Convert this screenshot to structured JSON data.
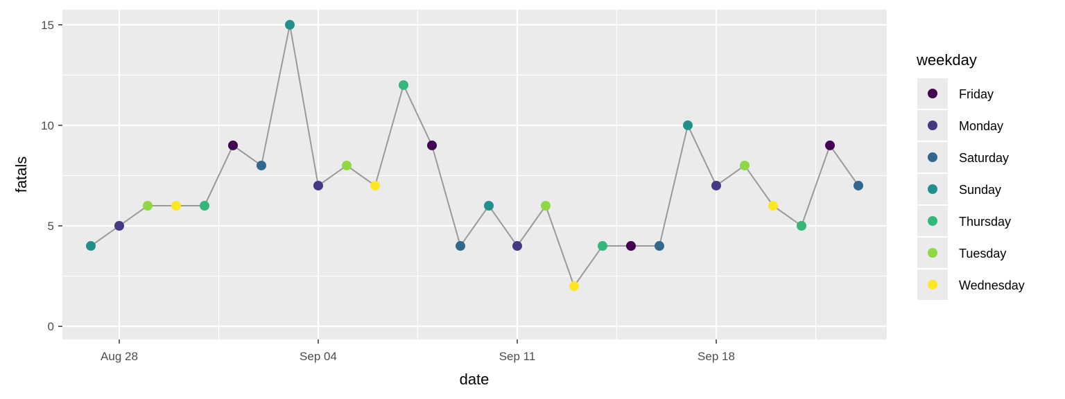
{
  "chart_data": {
    "type": "scatter",
    "title": "",
    "xlabel": "date",
    "ylabel": "fatals",
    "ylim": [
      0,
      15
    ],
    "xlim": [
      "2016-08-26",
      "2016-09-24"
    ],
    "x_ticks": [
      {
        "date": "2016-08-28",
        "label": "Aug 28"
      },
      {
        "date": "2016-09-04",
        "label": "Sep 04"
      },
      {
        "date": "2016-09-11",
        "label": "Sep 11"
      },
      {
        "date": "2016-09-18",
        "label": "Sep 18"
      }
    ],
    "y_ticks": [
      0,
      5,
      10,
      15
    ],
    "grid": true,
    "line_color": "#999999",
    "legend": {
      "title": "weekday",
      "position": "right",
      "entries": [
        {
          "name": "Friday",
          "color": "#440154"
        },
        {
          "name": "Monday",
          "color": "#443A83"
        },
        {
          "name": "Saturday",
          "color": "#31688E"
        },
        {
          "name": "Sunday",
          "color": "#21908C"
        },
        {
          "name": "Thursday",
          "color": "#35B779"
        },
        {
          "name": "Tuesday",
          "color": "#8FD744"
        },
        {
          "name": "Wednesday",
          "color": "#FDE725"
        }
      ]
    },
    "points": [
      {
        "date": "2016-08-27",
        "fatals": 4,
        "weekday": "Sunday"
      },
      {
        "date": "2016-08-28",
        "fatals": 5,
        "weekday": "Monday"
      },
      {
        "date": "2016-08-29",
        "fatals": 6,
        "weekday": "Tuesday"
      },
      {
        "date": "2016-08-30",
        "fatals": 6,
        "weekday": "Wednesday"
      },
      {
        "date": "2016-08-31",
        "fatals": 6,
        "weekday": "Thursday"
      },
      {
        "date": "2016-09-01",
        "fatals": 9,
        "weekday": "Friday"
      },
      {
        "date": "2016-09-02",
        "fatals": 8,
        "weekday": "Saturday"
      },
      {
        "date": "2016-09-03",
        "fatals": 15,
        "weekday": "Sunday"
      },
      {
        "date": "2016-09-04",
        "fatals": 7,
        "weekday": "Monday"
      },
      {
        "date": "2016-09-05",
        "fatals": 8,
        "weekday": "Tuesday"
      },
      {
        "date": "2016-09-06",
        "fatals": 7,
        "weekday": "Wednesday"
      },
      {
        "date": "2016-09-07",
        "fatals": 12,
        "weekday": "Thursday"
      },
      {
        "date": "2016-09-08",
        "fatals": 9,
        "weekday": "Friday"
      },
      {
        "date": "2016-09-09",
        "fatals": 4,
        "weekday": "Saturday"
      },
      {
        "date": "2016-09-10",
        "fatals": 6,
        "weekday": "Sunday"
      },
      {
        "date": "2016-09-11",
        "fatals": 4,
        "weekday": "Monday"
      },
      {
        "date": "2016-09-12",
        "fatals": 6,
        "weekday": "Tuesday"
      },
      {
        "date": "2016-09-13",
        "fatals": 2,
        "weekday": "Wednesday"
      },
      {
        "date": "2016-09-14",
        "fatals": 4,
        "weekday": "Thursday"
      },
      {
        "date": "2016-09-15",
        "fatals": 4,
        "weekday": "Friday"
      },
      {
        "date": "2016-09-16",
        "fatals": 4,
        "weekday": "Saturday"
      },
      {
        "date": "2016-09-17",
        "fatals": 10,
        "weekday": "Sunday"
      },
      {
        "date": "2016-09-18",
        "fatals": 7,
        "weekday": "Monday"
      },
      {
        "date": "2016-09-19",
        "fatals": 8,
        "weekday": "Tuesday"
      },
      {
        "date": "2016-09-20",
        "fatals": 6,
        "weekday": "Wednesday"
      },
      {
        "date": "2016-09-21",
        "fatals": 5,
        "weekday": "Thursday"
      },
      {
        "date": "2016-09-22",
        "fatals": 9,
        "weekday": "Friday"
      },
      {
        "date": "2016-09-23",
        "fatals": 7,
        "weekday": "Saturday"
      }
    ]
  }
}
